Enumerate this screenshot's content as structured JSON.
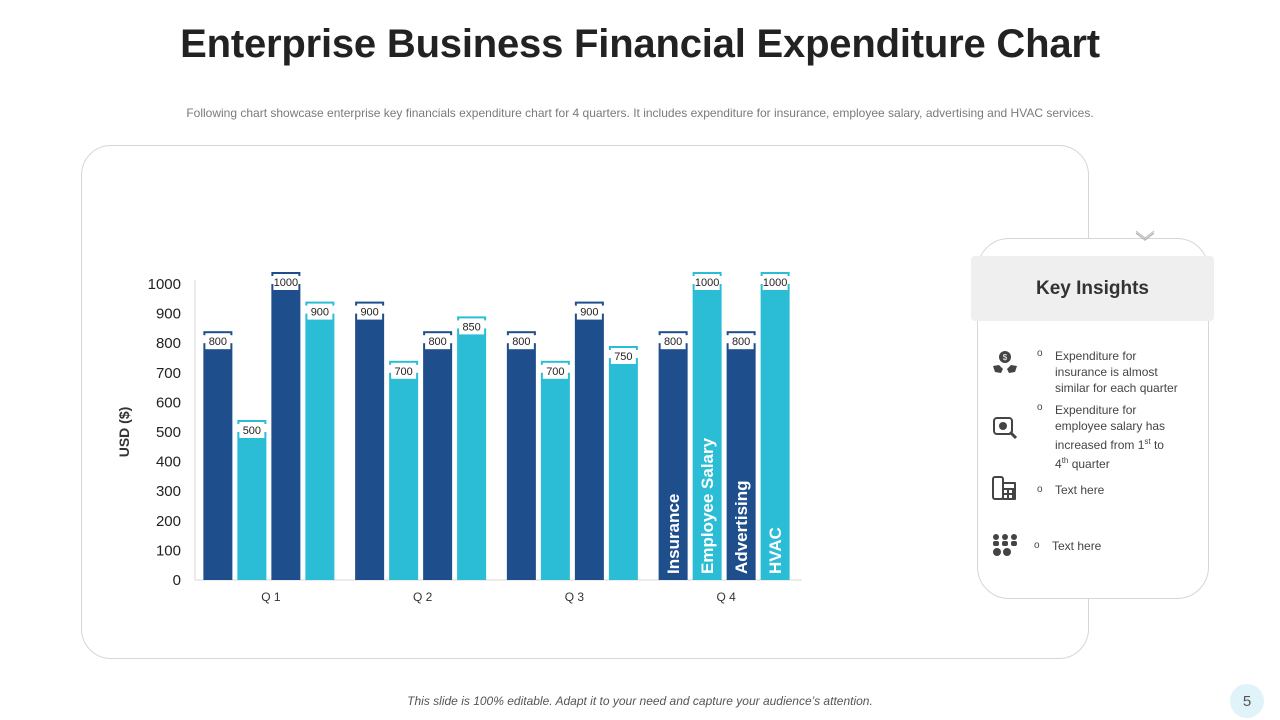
{
  "slide": {
    "title": "Enterprise Business Financial Expenditure Chart",
    "subtitle": "Following chart showcase enterprise key financials expenditure chart for 4 quarters. It includes expenditure for insurance, employee salary, advertising and HVAC services.",
    "footer": "This slide is 100% editable. Adapt it to your need and capture your audience’s attention.",
    "page_number": "5"
  },
  "colors": {
    "insurance": "#1f4e8c",
    "employee_salary": "#2bbcd6",
    "advertising": "#1f4e8c",
    "hvac": "#2bbcd6"
  },
  "chart_data": {
    "type": "bar",
    "title": "",
    "xlabel": "",
    "ylabel": "USD ($)",
    "ylim": [
      0,
      1000
    ],
    "yticks": [
      0,
      100,
      200,
      300,
      400,
      500,
      600,
      700,
      800,
      900,
      1000
    ],
    "categories": [
      "Q 1",
      "Q 2",
      "Q 3",
      "Q 4"
    ],
    "series": [
      {
        "name": "Insurance",
        "values": [
          800,
          900,
          800,
          800
        ],
        "color": "#1f4e8c"
      },
      {
        "name": "Employee Salary",
        "values": [
          500,
          700,
          700,
          1000
        ],
        "color": "#2bbcd6"
      },
      {
        "name": "Advertising",
        "values": [
          1000,
          800,
          900,
          800
        ],
        "color": "#1f4e8c"
      },
      {
        "name": "HVAC",
        "values": [
          900,
          850,
          750,
          1000
        ],
        "color": "#2bbcd6"
      }
    ],
    "grid": false,
    "legend": "series names printed vertically inside Q 4 bars"
  },
  "insights": {
    "title": "Key Insights",
    "bullet_glyph": "o",
    "items": [
      {
        "icon": "money-hands-icon",
        "line1": "Expenditure for",
        "line2": "insurance is almost",
        "line3": "similar for each quarter",
        "line4": ""
      },
      {
        "icon": "salary-search-icon",
        "line1": "Expenditure for",
        "line2": "employee salary has",
        "line3": "increased from 1",
        "sup3": "st",
        "after3": " to",
        "line4": "4",
        "sup4": "th",
        "after4": " quarter"
      },
      {
        "icon": "calculator-phone-icon",
        "line1": "Text here"
      },
      {
        "icon": "team-money-icon",
        "line1": "Text here"
      }
    ]
  }
}
